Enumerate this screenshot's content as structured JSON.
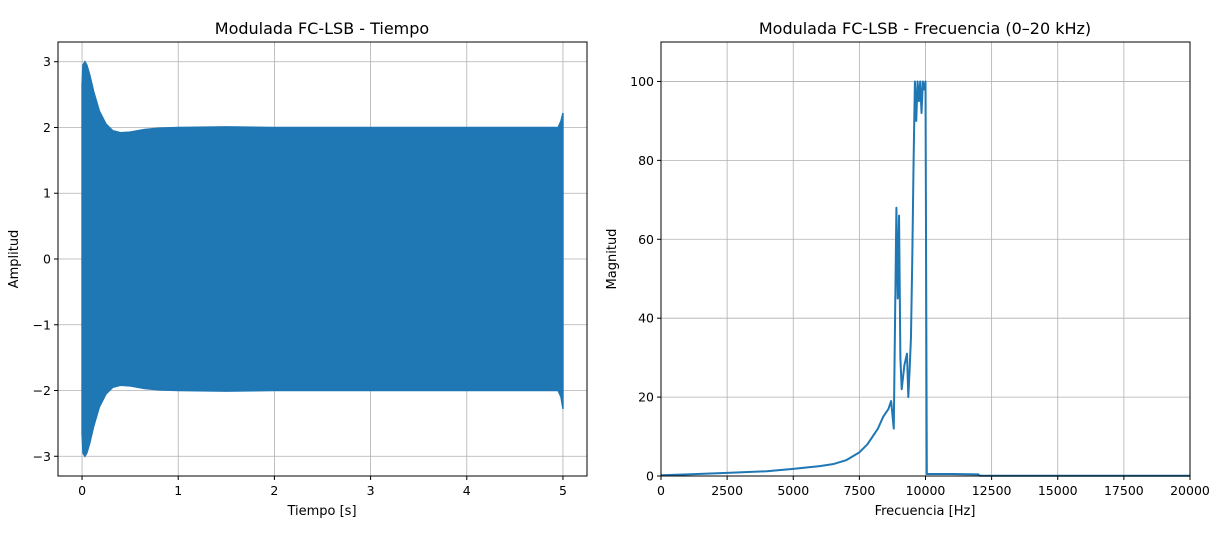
{
  "chart_data": [
    {
      "type": "line",
      "title": "Modulada FC-LSB - Tiempo",
      "xlabel": "Tiempo [s]",
      "ylabel": "Amplitud",
      "xlim": [
        -0.25,
        5.25
      ],
      "ylim": [
        -3.3,
        3.3
      ],
      "grid": true,
      "x_ticks": [
        0,
        1,
        2,
        3,
        4,
        5
      ],
      "x_tick_labels": [
        "0",
        "1",
        "2",
        "3",
        "4",
        "5"
      ],
      "y_ticks": [
        -3,
        -2,
        -1,
        0,
        1,
        2,
        3
      ],
      "y_tick_labels": [
        "−3",
        "−2",
        "−1",
        "0",
        "1",
        "2",
        "3"
      ],
      "color": "#1f77b4",
      "series": [
        {
          "name": "",
          "kind": "envelope",
          "x": [
            0.0,
            0.01,
            0.03,
            0.05,
            0.08,
            0.12,
            0.18,
            0.25,
            0.32,
            0.4,
            0.5,
            0.65,
            0.8,
            1.0,
            1.5,
            2.0,
            3.0,
            4.0,
            4.95,
            4.98,
            5.0
          ],
          "upper": [
            2.65,
            2.95,
            3.0,
            2.95,
            2.8,
            2.55,
            2.25,
            2.05,
            1.95,
            1.92,
            1.93,
            1.97,
            1.99,
            2.0,
            2.01,
            2.0,
            2.0,
            2.0,
            2.0,
            2.1,
            2.22
          ],
          "lower": [
            -2.65,
            -2.95,
            -3.0,
            -2.95,
            -2.8,
            -2.55,
            -2.25,
            -2.05,
            -1.95,
            -1.92,
            -1.93,
            -1.97,
            -1.99,
            -2.0,
            -2.01,
            -2.0,
            -2.0,
            -2.0,
            -2.0,
            -2.1,
            -2.28
          ]
        }
      ]
    },
    {
      "type": "line",
      "title": "Modulada FC-LSB - Frecuencia (0–20 kHz)",
      "xlabel": "Frecuencia [Hz]",
      "ylabel": "Magnitud",
      "xlim": [
        0,
        20000
      ],
      "ylim": [
        0,
        110
      ],
      "grid": true,
      "x_ticks": [
        0,
        2500,
        5000,
        7500,
        10000,
        12500,
        15000,
        17500,
        20000
      ],
      "x_tick_labels": [
        "0",
        "2500",
        "5000",
        "7500",
        "10000",
        "12500",
        "15000",
        "17500",
        "20000"
      ],
      "y_ticks": [
        0,
        20,
        40,
        60,
        80,
        100
      ],
      "y_tick_labels": [
        "0",
        "20",
        "40",
        "60",
        "80",
        "100"
      ],
      "color": "#1f77b4",
      "series": [
        {
          "name": "",
          "kind": "spectrum",
          "x": [
            0,
            1000,
            2500,
            4000,
            5000,
            6000,
            6500,
            7000,
            7500,
            7800,
            8000,
            8200,
            8400,
            8600,
            8700,
            8800,
            8900,
            8950,
            9000,
            9050,
            9100,
            9200,
            9300,
            9350,
            9400,
            9450,
            9500,
            9550,
            9600,
            9650,
            9700,
            9750,
            9800,
            9850,
            9900,
            9950,
            10000,
            10050,
            11000,
            12000,
            12050,
            14000,
            20000
          ],
          "y": [
            0.2,
            0.4,
            0.8,
            1.2,
            1.8,
            2.5,
            3.0,
            4.0,
            6.0,
            8.0,
            10.0,
            12.0,
            15.0,
            17.0,
            19.0,
            12.0,
            68.0,
            45.0,
            66.0,
            30.0,
            22.0,
            28.0,
            31.0,
            20.0,
            27.0,
            35.0,
            55.0,
            80.0,
            100.0,
            90.0,
            100.0,
            95.0,
            100.0,
            92.0,
            100.0,
            98.0,
            100.0,
            0.5,
            0.5,
            0.4,
            0.05,
            0.05,
            0.05
          ]
        }
      ]
    }
  ]
}
